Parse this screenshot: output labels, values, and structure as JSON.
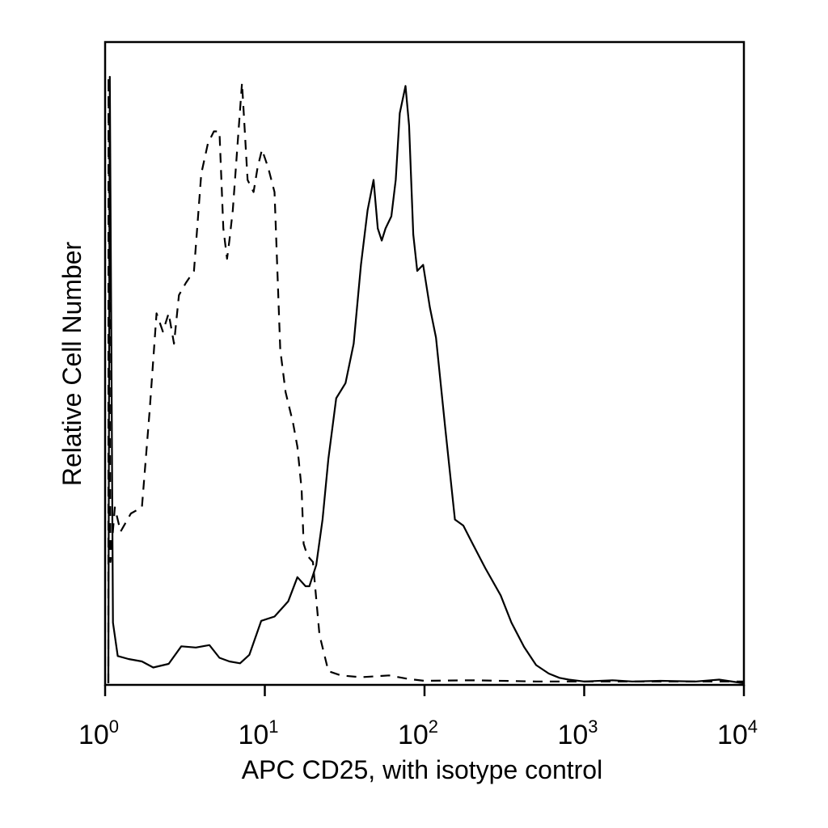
{
  "chart_data": {
    "type": "line",
    "title": "",
    "xlabel": "APC CD25, with isotype control",
    "ylabel": "Relative Cell Number",
    "x_scale": "log",
    "xlim": [
      1,
      10000
    ],
    "ylim": [
      0,
      100
    ],
    "x_ticks": [
      {
        "base": "10",
        "exp": "0",
        "value": 1
      },
      {
        "base": "10",
        "exp": "1",
        "value": 10
      },
      {
        "base": "10",
        "exp": "2",
        "value": 100
      },
      {
        "base": "10",
        "exp": "3",
        "value": 1000
      },
      {
        "base": "10",
        "exp": "4",
        "value": 10000
      }
    ],
    "grid": false,
    "series": [
      {
        "style": "solid",
        "x": [
          1.0,
          1.07,
          1.12,
          1.2,
          1.4,
          1.7,
          2.0,
          2.5,
          3.0,
          3.7,
          4.5,
          5.2,
          6.0,
          7.0,
          8.0,
          9.5,
          11.5,
          14.0,
          16.0,
          18.0,
          19.0,
          21.0,
          23.0,
          25.0,
          28.0,
          32.0,
          36.0,
          40.0,
          44.0,
          48.0,
          51.0,
          54.0,
          57.0,
          62.0,
          66.0,
          70.0,
          76.0,
          80.0,
          85.0,
          90.0,
          98.0,
          108.0,
          118.0,
          135.0,
          155.0,
          175.0,
          200.0,
          240.0,
          300.0,
          350.0,
          420.0,
          500.0,
          600.0,
          700.0,
          800.0,
          1000.0,
          1500.0,
          2000.0,
          3000.0,
          5000.0,
          7000.0,
          10000.0
        ],
        "y": [
          0,
          100,
          10,
          4.5,
          4,
          3.6,
          2.6,
          3.2,
          6.1,
          5.9,
          6.3,
          4.2,
          3.6,
          3.3,
          4.7,
          10.3,
          11.0,
          13.5,
          17.5,
          16.0,
          16.0,
          19.5,
          27.0,
          37.0,
          47.0,
          49.5,
          56.0,
          69.0,
          78.0,
          83.0,
          75.0,
          73.0,
          75.0,
          77.0,
          83.0,
          94.0,
          98.5,
          92.0,
          74.0,
          68.0,
          69.0,
          62.0,
          57.0,
          42.0,
          27.0,
          26.0,
          23.0,
          19.0,
          14.5,
          10.0,
          6.0,
          3.0,
          1.6,
          0.9,
          0.6,
          0.3,
          0.5,
          0.3,
          0.4,
          0.3,
          0.6,
          0
        ]
      },
      {
        "style": "dashed",
        "x": [
          1.0,
          1.05,
          1.08,
          1.15,
          1.25,
          1.45,
          1.7,
          1.9,
          2.1,
          2.3,
          2.5,
          2.7,
          2.9,
          3.2,
          3.6,
          4.0,
          4.4,
          4.8,
          5.2,
          5.5,
          5.8,
          6.0,
          6.3,
          6.8,
          7.2,
          7.8,
          8.5,
          9.0,
          9.6,
          10.5,
          11.5,
          12.5,
          13.5,
          15.0,
          16.0,
          17.0,
          17.5,
          18.5,
          20.0,
          22.0,
          25.0,
          30.0,
          40.0,
          60.0,
          80.0,
          100.0,
          200.0,
          500.0,
          1000.0,
          3000.0,
          10000.0
        ],
        "y": [
          0,
          100,
          20,
          29,
          25,
          28,
          29,
          45,
          61,
          58,
          61,
          56,
          64,
          66,
          68,
          84,
          89,
          91,
          91,
          75,
          70,
          73,
          78,
          90,
          99,
          83,
          81,
          85,
          88,
          85,
          81,
          55,
          48,
          43,
          39,
          32,
          23,
          21,
          20,
          8,
          2,
          1.3,
          1.0,
          1.3,
          0.7,
          0.4,
          0.5,
          0.3,
          0.3,
          0.3,
          0.3
        ]
      }
    ]
  }
}
